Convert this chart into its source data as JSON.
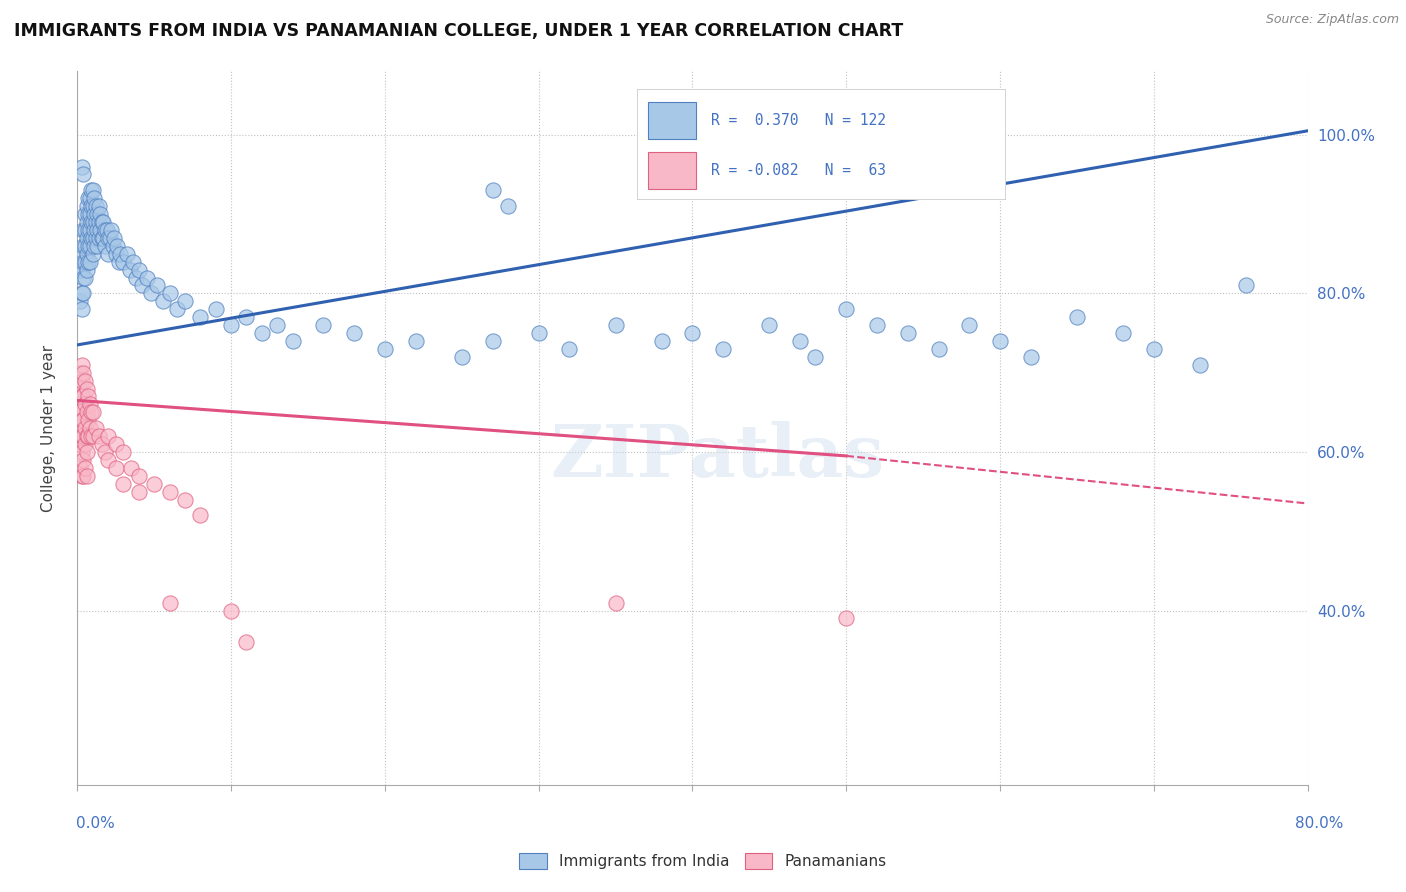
{
  "title": "IMMIGRANTS FROM INDIA VS PANAMANIAN COLLEGE, UNDER 1 YEAR CORRELATION CHART",
  "source": "Source: ZipAtlas.com",
  "ylabel": "College, Under 1 year",
  "xlim": [
    0.0,
    0.8
  ],
  "ylim": [
    0.18,
    1.08
  ],
  "blue_color": "#A8C8E8",
  "pink_color": "#F8B8C8",
  "blue_edge_color": "#5080C0",
  "pink_edge_color": "#E06080",
  "blue_line_color": "#3060B0",
  "pink_line_color": "#E05080",
  "watermark": "ZIPatlas",
  "blue_line": [
    0.0,
    0.735,
    0.8,
    1.005
  ],
  "pink_solid_line": [
    0.0,
    0.665,
    0.5,
    0.595
  ],
  "pink_dash_line": [
    0.5,
    0.595,
    0.8,
    0.535
  ],
  "india_scatter": [
    [
      0.002,
      0.83
    ],
    [
      0.002,
      0.79
    ],
    [
      0.003,
      0.85
    ],
    [
      0.003,
      0.83
    ],
    [
      0.003,
      0.8
    ],
    [
      0.003,
      0.78
    ],
    [
      0.004,
      0.88
    ],
    [
      0.004,
      0.86
    ],
    [
      0.004,
      0.84
    ],
    [
      0.004,
      0.82
    ],
    [
      0.004,
      0.8
    ],
    [
      0.005,
      0.9
    ],
    [
      0.005,
      0.88
    ],
    [
      0.005,
      0.86
    ],
    [
      0.005,
      0.84
    ],
    [
      0.005,
      0.82
    ],
    [
      0.006,
      0.91
    ],
    [
      0.006,
      0.89
    ],
    [
      0.006,
      0.87
    ],
    [
      0.006,
      0.85
    ],
    [
      0.006,
      0.83
    ],
    [
      0.007,
      0.92
    ],
    [
      0.007,
      0.9
    ],
    [
      0.007,
      0.88
    ],
    [
      0.007,
      0.86
    ],
    [
      0.007,
      0.84
    ],
    [
      0.008,
      0.92
    ],
    [
      0.008,
      0.9
    ],
    [
      0.008,
      0.88
    ],
    [
      0.008,
      0.86
    ],
    [
      0.008,
      0.84
    ],
    [
      0.009,
      0.93
    ],
    [
      0.009,
      0.91
    ],
    [
      0.009,
      0.89
    ],
    [
      0.009,
      0.87
    ],
    [
      0.01,
      0.93
    ],
    [
      0.01,
      0.91
    ],
    [
      0.01,
      0.89
    ],
    [
      0.01,
      0.87
    ],
    [
      0.01,
      0.85
    ],
    [
      0.011,
      0.92
    ],
    [
      0.011,
      0.9
    ],
    [
      0.011,
      0.88
    ],
    [
      0.011,
      0.86
    ],
    [
      0.012,
      0.91
    ],
    [
      0.012,
      0.89
    ],
    [
      0.012,
      0.87
    ],
    [
      0.013,
      0.9
    ],
    [
      0.013,
      0.88
    ],
    [
      0.013,
      0.86
    ],
    [
      0.014,
      0.91
    ],
    [
      0.014,
      0.89
    ],
    [
      0.014,
      0.87
    ],
    [
      0.015,
      0.9
    ],
    [
      0.015,
      0.88
    ],
    [
      0.016,
      0.89
    ],
    [
      0.016,
      0.87
    ],
    [
      0.017,
      0.89
    ],
    [
      0.017,
      0.87
    ],
    [
      0.018,
      0.88
    ],
    [
      0.018,
      0.86
    ],
    [
      0.019,
      0.88
    ],
    [
      0.02,
      0.87
    ],
    [
      0.02,
      0.85
    ],
    [
      0.021,
      0.87
    ],
    [
      0.022,
      0.88
    ],
    [
      0.023,
      0.86
    ],
    [
      0.024,
      0.87
    ],
    [
      0.025,
      0.85
    ],
    [
      0.026,
      0.86
    ],
    [
      0.027,
      0.84
    ],
    [
      0.028,
      0.85
    ],
    [
      0.03,
      0.84
    ],
    [
      0.032,
      0.85
    ],
    [
      0.034,
      0.83
    ],
    [
      0.036,
      0.84
    ],
    [
      0.038,
      0.82
    ],
    [
      0.04,
      0.83
    ],
    [
      0.042,
      0.81
    ],
    [
      0.045,
      0.82
    ],
    [
      0.048,
      0.8
    ],
    [
      0.052,
      0.81
    ],
    [
      0.056,
      0.79
    ],
    [
      0.06,
      0.8
    ],
    [
      0.065,
      0.78
    ],
    [
      0.07,
      0.79
    ],
    [
      0.08,
      0.77
    ],
    [
      0.09,
      0.78
    ],
    [
      0.1,
      0.76
    ],
    [
      0.11,
      0.77
    ],
    [
      0.12,
      0.75
    ],
    [
      0.13,
      0.76
    ],
    [
      0.14,
      0.74
    ],
    [
      0.16,
      0.76
    ],
    [
      0.18,
      0.75
    ],
    [
      0.2,
      0.73
    ],
    [
      0.22,
      0.74
    ],
    [
      0.25,
      0.72
    ],
    [
      0.27,
      0.74
    ],
    [
      0.3,
      0.75
    ],
    [
      0.32,
      0.73
    ],
    [
      0.35,
      0.76
    ],
    [
      0.38,
      0.74
    ],
    [
      0.4,
      0.75
    ],
    [
      0.42,
      0.73
    ],
    [
      0.45,
      0.76
    ],
    [
      0.47,
      0.74
    ],
    [
      0.48,
      0.72
    ],
    [
      0.5,
      0.78
    ],
    [
      0.52,
      0.76
    ],
    [
      0.54,
      0.75
    ],
    [
      0.56,
      0.73
    ],
    [
      0.58,
      0.76
    ],
    [
      0.6,
      0.74
    ],
    [
      0.62,
      0.72
    ],
    [
      0.65,
      0.77
    ],
    [
      0.68,
      0.75
    ],
    [
      0.7,
      0.73
    ],
    [
      0.73,
      0.71
    ],
    [
      0.76,
      0.81
    ],
    [
      0.003,
      0.96
    ],
    [
      0.004,
      0.95
    ],
    [
      0.27,
      0.93
    ],
    [
      0.28,
      0.91
    ]
  ],
  "panama_scatter": [
    [
      0.001,
      0.67
    ],
    [
      0.001,
      0.65
    ],
    [
      0.001,
      0.63
    ],
    [
      0.002,
      0.7
    ],
    [
      0.002,
      0.68
    ],
    [
      0.002,
      0.65
    ],
    [
      0.002,
      0.63
    ],
    [
      0.002,
      0.61
    ],
    [
      0.002,
      0.58
    ],
    [
      0.003,
      0.71
    ],
    [
      0.003,
      0.69
    ],
    [
      0.003,
      0.67
    ],
    [
      0.003,
      0.64
    ],
    [
      0.003,
      0.62
    ],
    [
      0.003,
      0.6
    ],
    [
      0.003,
      0.57
    ],
    [
      0.004,
      0.7
    ],
    [
      0.004,
      0.67
    ],
    [
      0.004,
      0.64
    ],
    [
      0.004,
      0.62
    ],
    [
      0.004,
      0.59
    ],
    [
      0.004,
      0.57
    ],
    [
      0.005,
      0.69
    ],
    [
      0.005,
      0.66
    ],
    [
      0.005,
      0.63
    ],
    [
      0.005,
      0.61
    ],
    [
      0.005,
      0.58
    ],
    [
      0.006,
      0.68
    ],
    [
      0.006,
      0.65
    ],
    [
      0.006,
      0.62
    ],
    [
      0.006,
      0.6
    ],
    [
      0.006,
      0.57
    ],
    [
      0.007,
      0.67
    ],
    [
      0.007,
      0.64
    ],
    [
      0.007,
      0.62
    ],
    [
      0.008,
      0.66
    ],
    [
      0.008,
      0.63
    ],
    [
      0.009,
      0.65
    ],
    [
      0.009,
      0.62
    ],
    [
      0.01,
      0.65
    ],
    [
      0.01,
      0.62
    ],
    [
      0.012,
      0.63
    ],
    [
      0.014,
      0.62
    ],
    [
      0.016,
      0.61
    ],
    [
      0.018,
      0.6
    ],
    [
      0.02,
      0.62
    ],
    [
      0.02,
      0.59
    ],
    [
      0.025,
      0.61
    ],
    [
      0.025,
      0.58
    ],
    [
      0.03,
      0.6
    ],
    [
      0.035,
      0.58
    ],
    [
      0.04,
      0.57
    ],
    [
      0.05,
      0.56
    ],
    [
      0.06,
      0.55
    ],
    [
      0.07,
      0.54
    ],
    [
      0.08,
      0.52
    ],
    [
      0.03,
      0.56
    ],
    [
      0.04,
      0.55
    ],
    [
      0.5,
      0.39
    ],
    [
      0.35,
      0.41
    ],
    [
      0.06,
      0.41
    ],
    [
      0.1,
      0.4
    ],
    [
      0.11,
      0.36
    ]
  ]
}
